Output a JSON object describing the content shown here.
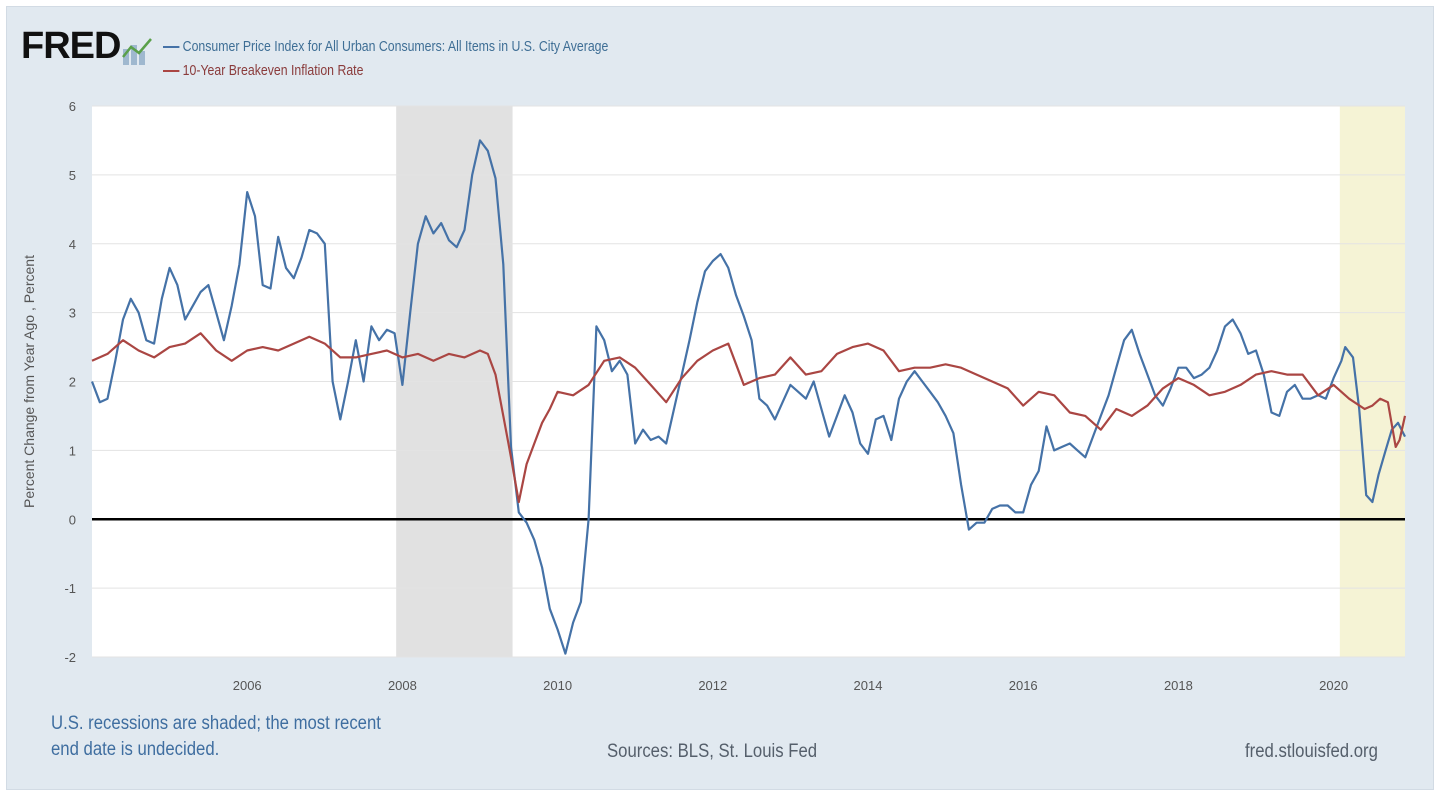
{
  "logo": {
    "text": "FRED",
    "icon": "fred-chart-logo-icon"
  },
  "footer": {
    "note_line1": "U.S. recessions are shaded; the most recent",
    "note_line2": "end date is undecided.",
    "sources": "Sources: BLS, St. Louis Fed",
    "site": "fred.stlouisfed.org"
  },
  "chart_data": {
    "type": "line",
    "title": "",
    "xlabel": "",
    "ylabel": "Percent Change from Year Ago , Percent",
    "xlim": [
      2004.0,
      2020.92
    ],
    "ylim": [
      -2,
      6
    ],
    "y_ticks": [
      6,
      5,
      4,
      3,
      2,
      1,
      0,
      -1,
      -2
    ],
    "x_ticks": [
      2006,
      2008,
      2010,
      2012,
      2014,
      2016,
      2018,
      2020
    ],
    "grid": "horizontal",
    "legend": "top-left",
    "zero_line": true,
    "recessions": [
      {
        "start": 2007.92,
        "end": 2009.42,
        "color": "#e1e1e1"
      },
      {
        "start": 2020.08,
        "end": 2020.92,
        "color": "#f5f3d5",
        "undecided_end": true
      }
    ],
    "series": [
      {
        "name": "Consumer Price Index for All Urban Consumers: All Items in U.S. City Average",
        "color": "#4572a7",
        "points": [
          [
            2004.0,
            2.0
          ],
          [
            2004.1,
            1.7
          ],
          [
            2004.2,
            1.75
          ],
          [
            2004.3,
            2.3
          ],
          [
            2004.4,
            2.9
          ],
          [
            2004.5,
            3.2
          ],
          [
            2004.6,
            3.0
          ],
          [
            2004.7,
            2.6
          ],
          [
            2004.8,
            2.55
          ],
          [
            2004.9,
            3.2
          ],
          [
            2005.0,
            3.65
          ],
          [
            2005.1,
            3.4
          ],
          [
            2005.2,
            2.9
          ],
          [
            2005.3,
            3.1
          ],
          [
            2005.4,
            3.3
          ],
          [
            2005.5,
            3.4
          ],
          [
            2005.6,
            3.0
          ],
          [
            2005.7,
            2.6
          ],
          [
            2005.8,
            3.1
          ],
          [
            2005.9,
            3.7
          ],
          [
            2006.0,
            4.75
          ],
          [
            2006.1,
            4.4
          ],
          [
            2006.2,
            3.4
          ],
          [
            2006.3,
            3.35
          ],
          [
            2006.4,
            4.1
          ],
          [
            2006.5,
            3.65
          ],
          [
            2006.6,
            3.5
          ],
          [
            2006.7,
            3.8
          ],
          [
            2006.8,
            4.2
          ],
          [
            2006.9,
            4.15
          ],
          [
            2007.0,
            4.0
          ],
          [
            2007.1,
            2.0
          ],
          [
            2007.2,
            1.45
          ],
          [
            2007.3,
            2.0
          ],
          [
            2007.4,
            2.6
          ],
          [
            2007.5,
            2.0
          ],
          [
            2007.6,
            2.8
          ],
          [
            2007.7,
            2.6
          ],
          [
            2007.8,
            2.75
          ],
          [
            2007.9,
            2.7
          ],
          [
            2008.0,
            1.95
          ],
          [
            2008.1,
            3.0
          ],
          [
            2008.2,
            4.0
          ],
          [
            2008.3,
            4.4
          ],
          [
            2008.4,
            4.15
          ],
          [
            2008.5,
            4.3
          ],
          [
            2008.6,
            4.05
          ],
          [
            2008.7,
            3.95
          ],
          [
            2008.8,
            4.2
          ],
          [
            2008.9,
            5.0
          ],
          [
            2009.0,
            5.5
          ],
          [
            2009.1,
            5.35
          ],
          [
            2009.2,
            4.95
          ],
          [
            2009.3,
            3.7
          ],
          [
            2009.4,
            1.05
          ],
          [
            2009.5,
            0.1
          ],
          [
            2009.6,
            -0.05
          ],
          [
            2009.7,
            -0.3
          ],
          [
            2009.8,
            -0.7
          ],
          [
            2009.9,
            -1.3
          ],
          [
            2010.0,
            -1.6
          ],
          [
            2010.1,
            -1.95
          ],
          [
            2010.2,
            -1.5
          ],
          [
            2010.3,
            -1.2
          ],
          [
            2010.4,
            0.0
          ],
          [
            2010.5,
            2.8
          ],
          [
            2010.6,
            2.6
          ],
          [
            2010.7,
            2.15
          ],
          [
            2010.8,
            2.3
          ],
          [
            2010.9,
            2.1
          ],
          [
            2011.0,
            1.1
          ],
          [
            2011.1,
            1.3
          ],
          [
            2011.2,
            1.15
          ],
          [
            2011.3,
            1.2
          ],
          [
            2011.4,
            1.1
          ],
          [
            2011.5,
            1.6
          ],
          [
            2011.6,
            2.1
          ],
          [
            2011.7,
            2.6
          ],
          [
            2011.8,
            3.15
          ],
          [
            2011.9,
            3.6
          ],
          [
            2012.0,
            3.75
          ],
          [
            2012.1,
            3.85
          ],
          [
            2012.2,
            3.65
          ],
          [
            2012.3,
            3.25
          ],
          [
            2012.4,
            2.95
          ],
          [
            2012.5,
            2.6
          ],
          [
            2012.6,
            1.75
          ],
          [
            2012.7,
            1.65
          ],
          [
            2012.8,
            1.45
          ],
          [
            2012.9,
            1.7
          ],
          [
            2013.0,
            1.95
          ],
          [
            2013.1,
            1.85
          ],
          [
            2013.2,
            1.75
          ],
          [
            2013.3,
            2.0
          ],
          [
            2013.4,
            1.6
          ],
          [
            2013.5,
            1.2
          ],
          [
            2013.6,
            1.5
          ],
          [
            2013.7,
            1.8
          ],
          [
            2013.8,
            1.55
          ],
          [
            2013.9,
            1.1
          ],
          [
            2014.0,
            0.95
          ],
          [
            2014.1,
            1.45
          ],
          [
            2014.2,
            1.5
          ],
          [
            2014.3,
            1.15
          ],
          [
            2014.4,
            1.75
          ],
          [
            2014.5,
            2.0
          ],
          [
            2014.6,
            2.15
          ],
          [
            2014.7,
            2.0
          ],
          [
            2014.8,
            1.85
          ],
          [
            2014.9,
            1.7
          ],
          [
            2015.0,
            1.5
          ],
          [
            2015.1,
            1.25
          ],
          [
            2015.2,
            0.5
          ],
          [
            2015.3,
            -0.15
          ],
          [
            2015.4,
            -0.05
          ],
          [
            2015.5,
            -0.05
          ],
          [
            2015.6,
            0.15
          ],
          [
            2015.7,
            0.2
          ],
          [
            2015.8,
            0.2
          ],
          [
            2015.9,
            0.1
          ],
          [
            2016.0,
            0.1
          ],
          [
            2016.1,
            0.5
          ],
          [
            2016.2,
            0.7
          ],
          [
            2016.3,
            1.35
          ],
          [
            2016.4,
            1.0
          ],
          [
            2016.5,
            1.05
          ],
          [
            2016.6,
            1.1
          ],
          [
            2016.7,
            1.0
          ],
          [
            2016.8,
            0.9
          ],
          [
            2016.9,
            1.2
          ],
          [
            2017.0,
            1.5
          ],
          [
            2017.1,
            1.8
          ],
          [
            2017.2,
            2.2
          ],
          [
            2017.3,
            2.6
          ],
          [
            2017.4,
            2.75
          ],
          [
            2017.5,
            2.4
          ],
          [
            2017.6,
            2.1
          ],
          [
            2017.7,
            1.8
          ],
          [
            2017.8,
            1.65
          ],
          [
            2017.9,
            1.9
          ],
          [
            2018.0,
            2.2
          ],
          [
            2018.1,
            2.2
          ],
          [
            2018.2,
            2.05
          ],
          [
            2018.3,
            2.1
          ],
          [
            2018.4,
            2.2
          ],
          [
            2018.5,
            2.45
          ],
          [
            2018.6,
            2.8
          ],
          [
            2018.7,
            2.9
          ],
          [
            2018.8,
            2.7
          ],
          [
            2018.9,
            2.4
          ],
          [
            2019.0,
            2.45
          ],
          [
            2019.1,
            2.1
          ],
          [
            2019.2,
            1.55
          ],
          [
            2019.3,
            1.5
          ],
          [
            2019.4,
            1.85
          ],
          [
            2019.5,
            1.95
          ],
          [
            2019.6,
            1.75
          ],
          [
            2019.7,
            1.75
          ],
          [
            2019.8,
            1.8
          ],
          [
            2019.9,
            1.75
          ],
          [
            2020.0,
            2.05
          ],
          [
            2020.1,
            2.3
          ],
          [
            2020.15,
            2.5
          ],
          [
            2020.25,
            2.35
          ],
          [
            2020.33,
            1.6
          ],
          [
            2020.42,
            0.35
          ],
          [
            2020.5,
            0.25
          ],
          [
            2020.58,
            0.65
          ],
          [
            2020.67,
            1.0
          ],
          [
            2020.75,
            1.3
          ],
          [
            2020.83,
            1.4
          ],
          [
            2020.92,
            1.2
          ]
        ]
      },
      {
        "name": "10-Year Breakeven Inflation Rate",
        "color": "#aa4643",
        "points": [
          [
            2004.0,
            2.3
          ],
          [
            2004.2,
            2.4
          ],
          [
            2004.4,
            2.6
          ],
          [
            2004.6,
            2.45
          ],
          [
            2004.8,
            2.35
          ],
          [
            2005.0,
            2.5
          ],
          [
            2005.2,
            2.55
          ],
          [
            2005.4,
            2.7
          ],
          [
            2005.6,
            2.45
          ],
          [
            2005.8,
            2.3
          ],
          [
            2006.0,
            2.45
          ],
          [
            2006.2,
            2.5
          ],
          [
            2006.4,
            2.45
          ],
          [
            2006.6,
            2.55
          ],
          [
            2006.8,
            2.65
          ],
          [
            2007.0,
            2.55
          ],
          [
            2007.2,
            2.35
          ],
          [
            2007.4,
            2.35
          ],
          [
            2007.6,
            2.4
          ],
          [
            2007.8,
            2.45
          ],
          [
            2008.0,
            2.35
          ],
          [
            2008.2,
            2.4
          ],
          [
            2008.4,
            2.3
          ],
          [
            2008.6,
            2.4
          ],
          [
            2008.8,
            2.35
          ],
          [
            2009.0,
            2.45
          ],
          [
            2009.1,
            2.4
          ],
          [
            2009.2,
            2.1
          ],
          [
            2009.3,
            1.5
          ],
          [
            2009.4,
            0.9
          ],
          [
            2009.5,
            0.25
          ],
          [
            2009.6,
            0.8
          ],
          [
            2009.7,
            1.1
          ],
          [
            2009.8,
            1.4
          ],
          [
            2009.9,
            1.6
          ],
          [
            2010.0,
            1.85
          ],
          [
            2010.2,
            1.8
          ],
          [
            2010.4,
            1.95
          ],
          [
            2010.6,
            2.3
          ],
          [
            2010.8,
            2.35
          ],
          [
            2011.0,
            2.2
          ],
          [
            2011.2,
            1.95
          ],
          [
            2011.4,
            1.7
          ],
          [
            2011.6,
            2.05
          ],
          [
            2011.8,
            2.3
          ],
          [
            2012.0,
            2.45
          ],
          [
            2012.2,
            2.55
          ],
          [
            2012.3,
            2.25
          ],
          [
            2012.4,
            1.95
          ],
          [
            2012.6,
            2.05
          ],
          [
            2012.8,
            2.1
          ],
          [
            2013.0,
            2.35
          ],
          [
            2013.2,
            2.1
          ],
          [
            2013.4,
            2.15
          ],
          [
            2013.6,
            2.4
          ],
          [
            2013.8,
            2.5
          ],
          [
            2014.0,
            2.55
          ],
          [
            2014.2,
            2.45
          ],
          [
            2014.4,
            2.15
          ],
          [
            2014.6,
            2.2
          ],
          [
            2014.8,
            2.2
          ],
          [
            2015.0,
            2.25
          ],
          [
            2015.2,
            2.2
          ],
          [
            2015.4,
            2.1
          ],
          [
            2015.6,
            2.0
          ],
          [
            2015.8,
            1.9
          ],
          [
            2016.0,
            1.65
          ],
          [
            2016.2,
            1.85
          ],
          [
            2016.4,
            1.8
          ],
          [
            2016.6,
            1.55
          ],
          [
            2016.8,
            1.5
          ],
          [
            2017.0,
            1.3
          ],
          [
            2017.2,
            1.6
          ],
          [
            2017.4,
            1.5
          ],
          [
            2017.6,
            1.65
          ],
          [
            2017.8,
            1.9
          ],
          [
            2018.0,
            2.05
          ],
          [
            2018.2,
            1.95
          ],
          [
            2018.4,
            1.8
          ],
          [
            2018.6,
            1.85
          ],
          [
            2018.8,
            1.95
          ],
          [
            2019.0,
            2.1
          ],
          [
            2019.2,
            2.15
          ],
          [
            2019.4,
            2.1
          ],
          [
            2019.6,
            2.1
          ],
          [
            2019.8,
            1.8
          ],
          [
            2020.0,
            1.95
          ],
          [
            2020.2,
            1.75
          ],
          [
            2020.4,
            1.6
          ],
          [
            2020.5,
            1.65
          ],
          [
            2020.6,
            1.75
          ],
          [
            2020.7,
            1.7
          ],
          [
            2020.8,
            1.05
          ],
          [
            2020.85,
            1.15
          ],
          [
            2020.92,
            1.5
          ]
        ]
      }
    ]
  }
}
